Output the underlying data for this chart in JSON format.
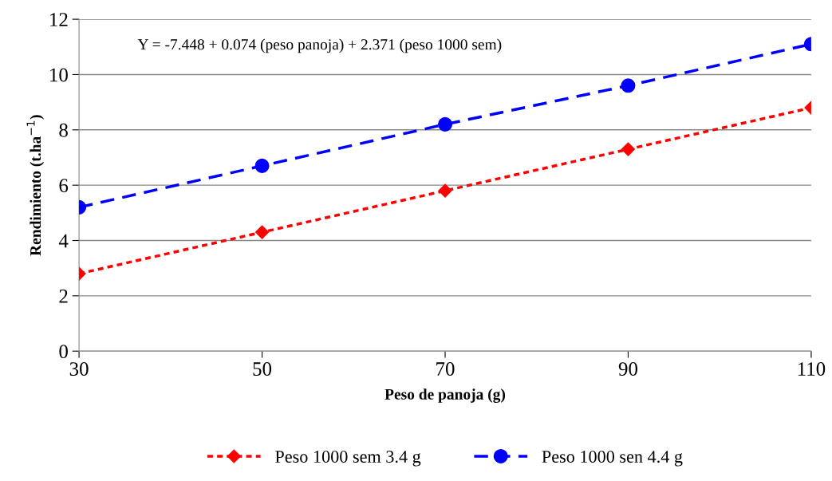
{
  "chart_data": {
    "type": "line",
    "xlabel": "Peso de panoja (g)",
    "ylabel": "Rendimiento (t.ha$^{−1}$)",
    "x": [
      30,
      50,
      70,
      90,
      110
    ],
    "series": [
      {
        "name": "Peso 1000 sem 3.4 g",
        "color": "#ff0000",
        "values": [
          2.8,
          4.3,
          5.8,
          7.3,
          8.8
        ],
        "marker": "diamond",
        "line_style": "dotted"
      },
      {
        "name": "Peso 1000 sen 4.4 g",
        "color": "#0000ff",
        "values": [
          5.2,
          6.7,
          8.2,
          9.6,
          11.1
        ],
        "marker": "circle",
        "line_style": "dashed"
      }
    ],
    "xlim": [
      30,
      110
    ],
    "xticks": [
      30,
      50,
      70,
      90,
      110
    ],
    "ylim": [
      0,
      12
    ],
    "yticks": [
      0,
      2,
      4,
      6,
      8,
      10,
      12
    ],
    "grid": "y",
    "legend": "bottom",
    "annotations": [
      "Y = -7.448 + 0.074 (peso panoja) + 2.371 (peso 1000 sem)"
    ]
  }
}
